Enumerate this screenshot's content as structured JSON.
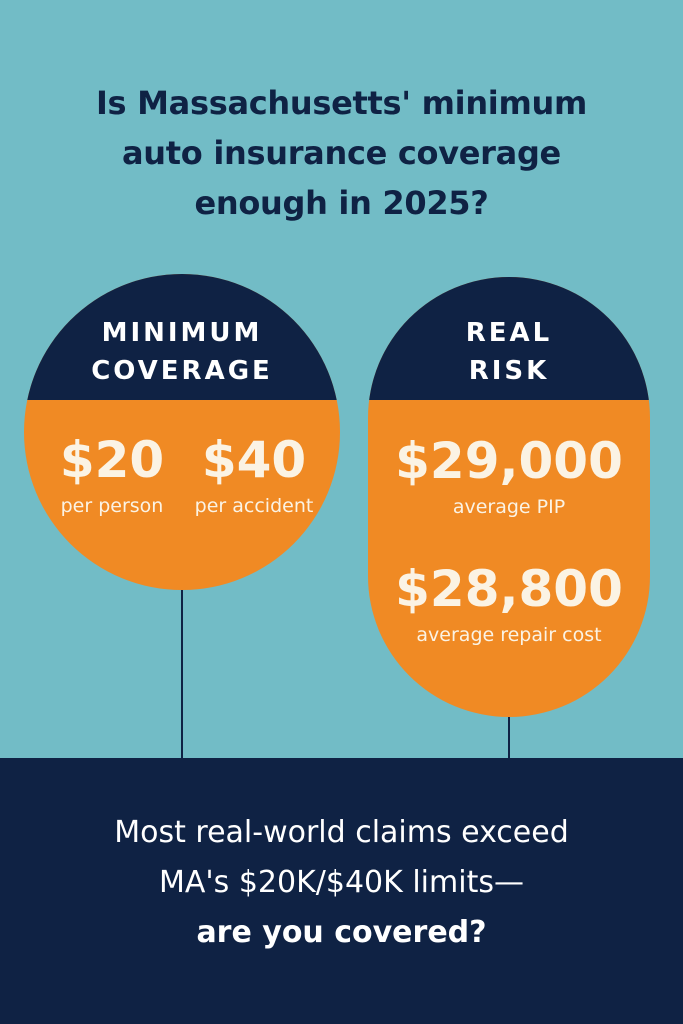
{
  "title": {
    "line1": "Is Massachusetts' minimum",
    "line2": "auto insurance coverage",
    "line3": "enough in 2025?"
  },
  "minimum_coverage": {
    "heading_line1": "MINIMUM",
    "heading_line2": "COVERAGE",
    "per_person_value": "$20",
    "per_person_label": "per person",
    "per_accident_value": "$40",
    "per_accident_label": "per accident"
  },
  "real_risk": {
    "heading_line1": "REAL",
    "heading_line2": "RISK",
    "pip_value": "$29,000",
    "pip_label": "average PIP",
    "repair_value": "$28,800",
    "repair_label": "average repair cost"
  },
  "footer": {
    "line1": "Most real-world claims exceed",
    "line2": "MA's $20K/$40K limits—",
    "line3": "are you covered?"
  },
  "colors": {
    "background": "#72bcc6",
    "navy": "#0f2244",
    "orange": "#f08a24",
    "cream": "#fbf3e4"
  }
}
